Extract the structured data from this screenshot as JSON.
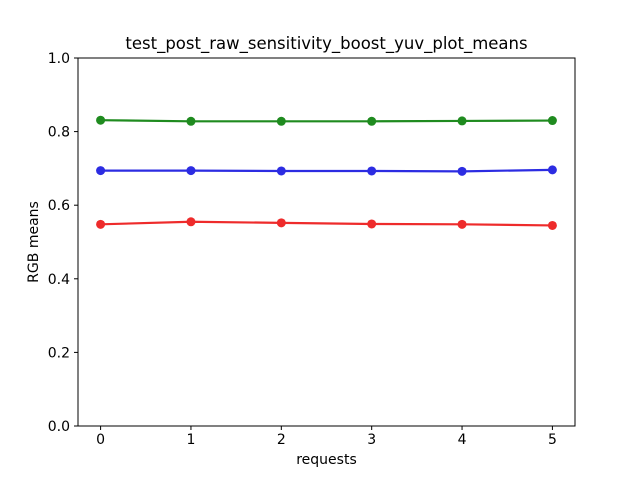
{
  "figure": {
    "background": "#ffffff",
    "frame_color": "#000000",
    "text_color": "#000000"
  },
  "chart_data": {
    "type": "line",
    "title": "test_post_raw_sensitivity_boost_yuv_plot_means",
    "xlabel": "requests",
    "ylabel": "RGB means",
    "x": [
      0,
      1,
      2,
      3,
      4,
      5
    ],
    "series": [
      {
        "name": "green",
        "color": "#1f8b1f",
        "marker": "circle",
        "values": [
          0.831,
          0.828,
          0.828,
          0.828,
          0.829,
          0.83
        ]
      },
      {
        "name": "blue",
        "color": "#2c2ce2",
        "marker": "circle",
        "values": [
          0.694,
          0.694,
          0.693,
          0.693,
          0.692,
          0.696
        ]
      },
      {
        "name": "red",
        "color": "#ee2b2b",
        "marker": "circle",
        "values": [
          0.548,
          0.555,
          0.552,
          0.549,
          0.548,
          0.545
        ]
      }
    ],
    "xtick_labels": [
      "0",
      "1",
      "2",
      "3",
      "4",
      "5"
    ],
    "xtick_values": [
      0,
      1,
      2,
      3,
      4,
      5
    ],
    "ytick_labels": [
      "0.0",
      "0.2",
      "0.4",
      "0.6",
      "0.8",
      "1.0"
    ],
    "ytick_values": [
      0.0,
      0.2,
      0.4,
      0.6,
      0.8,
      1.0
    ],
    "xlim": [
      -0.25,
      5.25
    ],
    "ylim": [
      0.0,
      1.0
    ],
    "grid": false,
    "legend": null
  }
}
